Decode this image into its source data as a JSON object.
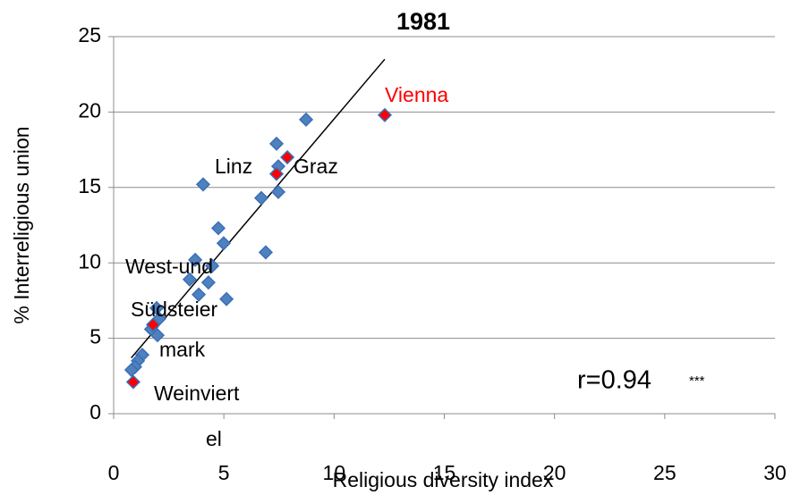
{
  "chart_data": {
    "type": "scatter",
    "title": "1981",
    "x_label": "Religious diversity index",
    "y_label": "% Interreligious union",
    "xlim": [
      0,
      30
    ],
    "xticks": [
      0,
      5,
      10,
      15,
      20,
      25,
      30
    ],
    "ylim": [
      0,
      25
    ],
    "yticks": [
      0,
      5,
      10,
      15,
      20,
      25
    ],
    "grid": true,
    "series": [
      {
        "color": "#4f81bd",
        "x": [
          8.73,
          7.39,
          7.47,
          4.06,
          7.47,
          6.7,
          4.75,
          4.99,
          6.9,
          3.7,
          4.47,
          3.45,
          4.3,
          3.86,
          5.12,
          1.95,
          2.07,
          1.7,
          1.99,
          1.3,
          1.1,
          0.97,
          0.81
        ],
        "values": [
          19.5,
          17.9,
          16.4,
          15.2,
          14.7,
          14.3,
          12.3,
          11.3,
          10.7,
          10.2,
          9.8,
          8.9,
          8.7,
          7.9,
          7.6,
          7.0,
          6.3,
          5.6,
          5.2,
          3.9,
          3.5,
          3.1,
          2.9
        ]
      },
      {
        "color": "#ff0000",
        "x": [
          12.3,
          7.88,
          7.39,
          1.79,
          0.89
        ],
        "values": [
          19.8,
          17.0,
          15.9,
          5.9,
          2.1
        ]
      }
    ],
    "trendline": {
      "color": "#000000",
      "x": [
        0.8,
        12.3
      ],
      "y": [
        3.7,
        23.5
      ]
    },
    "annotations": [
      {
        "text": "Vienna",
        "color": "#ff0000"
      },
      {
        "text": "Linz"
      },
      {
        "text": "Graz"
      },
      {
        "text": "West-und"
      },
      {
        "text": "Südsteier"
      },
      {
        "text": "mark"
      },
      {
        "text": "Weinviert"
      },
      {
        "text": "el"
      }
    ],
    "stat_label": "r=0.94",
    "stat_significance": "***"
  }
}
